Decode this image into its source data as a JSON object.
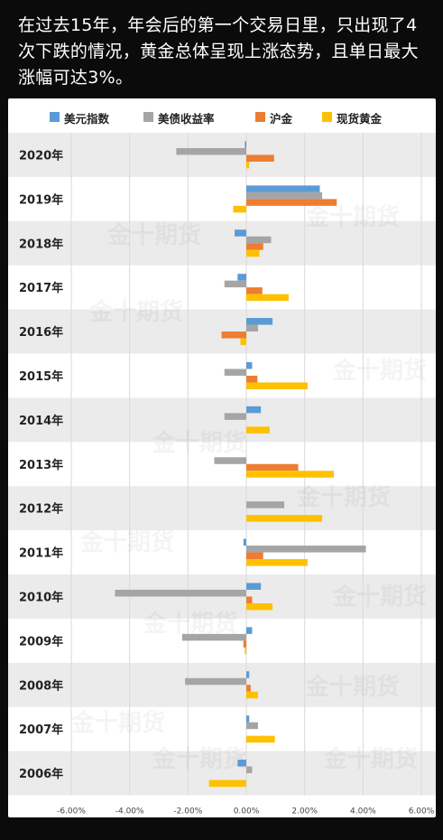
{
  "headline": "在过去15年，年会后的第一个交易日里，只出现了4次下跌的情况，黄金总体呈现上涨态势，且单日最大涨幅可达3%。",
  "watermark": "金十期货",
  "colors": {
    "美元指数": "#5b9bd5",
    "美债收益率": "#a5a5a5",
    "沪金": "#ed7d31",
    "现货黄金": "#ffc000",
    "band": "#ebebeb",
    "grid": "#d9d9d9"
  },
  "chart_data": {
    "type": "bar",
    "orientation": "horizontal",
    "title": "",
    "xlabel": "",
    "ylabel": "",
    "xlim": [
      -0.06,
      0.06
    ],
    "xticks": [
      -0.06,
      -0.04,
      -0.02,
      0.0,
      0.02,
      0.04,
      0.06
    ],
    "xtick_labels": [
      "-6.00%",
      "-4.00%",
      "-2.00%",
      "0.00%",
      "2.00%",
      "4.00%",
      "6.00%"
    ],
    "legend_position": "top",
    "grid": true,
    "categories": [
      "2020年",
      "2019年",
      "2018年",
      "2017年",
      "2016年",
      "2015年",
      "2014年",
      "2013年",
      "2012年",
      "2011年",
      "2010年",
      "2009年",
      "2008年",
      "2007年",
      "2006年"
    ],
    "series": [
      {
        "name": "美元指数",
        "values": [
          -0.0005,
          0.0252,
          -0.004,
          -0.003,
          0.009,
          0.002,
          0.005,
          0.0,
          0.0,
          -0.001,
          0.005,
          0.002,
          0.001,
          0.001,
          -0.003
        ]
      },
      {
        "name": "美债收益率",
        "values": [
          -0.024,
          0.026,
          0.0085,
          -0.0075,
          0.004,
          -0.0075,
          -0.0075,
          -0.011,
          0.013,
          0.041,
          -0.045,
          -0.022,
          -0.021,
          0.004,
          0.002
        ]
      },
      {
        "name": "沪金",
        "values": [
          0.0095,
          0.031,
          0.0058,
          0.0055,
          -0.0085,
          0.0038,
          0.0,
          0.0178,
          0.0,
          0.0058,
          0.002,
          -0.001,
          0.0015,
          0.0,
          0.0
        ]
      },
      {
        "name": "现货黄金",
        "values": [
          0.001,
          -0.0045,
          0.0045,
          0.0145,
          -0.002,
          0.021,
          0.008,
          0.03,
          0.026,
          0.021,
          0.009,
          -0.0005,
          0.004,
          0.0098,
          -0.0128
        ]
      }
    ]
  }
}
